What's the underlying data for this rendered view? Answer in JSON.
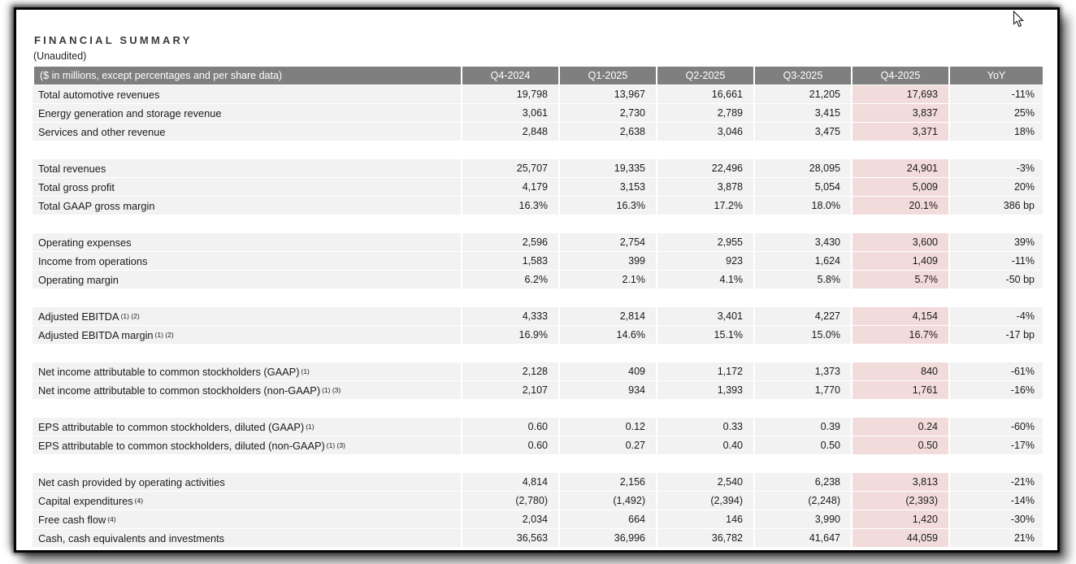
{
  "page": {
    "title": "FINANCIAL SUMMARY",
    "subtitle": "(Unaudited)"
  },
  "colors": {
    "header_bg": "#7f7f7f",
    "header_text": "#ffffff",
    "row_bg": "#f2f2f2",
    "highlight_bg": "#f2dcdb",
    "text": "#1a1a1a",
    "frame": "#050505"
  },
  "table": {
    "columns": [
      "($ in millions, except percentages and per share data)",
      "Q4-2024",
      "Q1-2025",
      "Q2-2025",
      "Q3-2025",
      "Q4-2025",
      "YoY"
    ],
    "highlight_column": "Q4-2025",
    "highlight_value_index": 4,
    "groups": [
      {
        "rows": [
          {
            "label": "Total automotive revenues",
            "sup": "",
            "values": [
              "19,798",
              "13,967",
              "16,661",
              "21,205",
              "17,693",
              "-11%"
            ]
          },
          {
            "label": "Energy generation and storage revenue",
            "sup": "",
            "values": [
              "3,061",
              "2,730",
              "2,789",
              "3,415",
              "3,837",
              "25%"
            ]
          },
          {
            "label": "Services and other revenue",
            "sup": "",
            "values": [
              "2,848",
              "2,638",
              "3,046",
              "3,475",
              "3,371",
              "18%"
            ]
          }
        ]
      },
      {
        "rows": [
          {
            "label": "Total revenues",
            "sup": "",
            "values": [
              "25,707",
              "19,335",
              "22,496",
              "28,095",
              "24,901",
              "-3%"
            ]
          },
          {
            "label": "Total gross profit",
            "sup": "",
            "values": [
              "4,179",
              "3,153",
              "3,878",
              "5,054",
              "5,009",
              "20%"
            ]
          },
          {
            "label": "Total GAAP gross margin",
            "sup": "",
            "values": [
              "16.3%",
              "16.3%",
              "17.2%",
              "18.0%",
              "20.1%",
              "386 bp"
            ]
          }
        ]
      },
      {
        "rows": [
          {
            "label": "Operating expenses",
            "sup": "",
            "values": [
              "2,596",
              "2,754",
              "2,955",
              "3,430",
              "3,600",
              "39%"
            ]
          },
          {
            "label": "Income from operations",
            "sup": "",
            "values": [
              "1,583",
              "399",
              "923",
              "1,624",
              "1,409",
              "-11%"
            ]
          },
          {
            "label": "Operating margin",
            "sup": "",
            "values": [
              "6.2%",
              "2.1%",
              "4.1%",
              "5.8%",
              "5.7%",
              "-50 bp"
            ]
          }
        ]
      },
      {
        "rows": [
          {
            "label": "Adjusted EBITDA",
            "sup": "(1) (2)",
            "values": [
              "4,333",
              "2,814",
              "3,401",
              "4,227",
              "4,154",
              "-4%"
            ]
          },
          {
            "label": "Adjusted EBITDA margin",
            "sup": "(1) (2)",
            "values": [
              "16.9%",
              "14.6%",
              "15.1%",
              "15.0%",
              "16.7%",
              "-17 bp"
            ]
          }
        ]
      },
      {
        "rows": [
          {
            "label": "Net income attributable to common stockholders (GAAP)",
            "sup": "(1)",
            "values": [
              "2,128",
              "409",
              "1,172",
              "1,373",
              "840",
              "-61%"
            ]
          },
          {
            "label": "Net income attributable to common stockholders (non-GAAP)",
            "sup": "(1) (3)",
            "values": [
              "2,107",
              "934",
              "1,393",
              "1,770",
              "1,761",
              "-16%"
            ]
          }
        ]
      },
      {
        "rows": [
          {
            "label": "EPS attributable to common stockholders, diluted (GAAP)",
            "sup": "(1)",
            "values": [
              "0.60",
              "0.12",
              "0.33",
              "0.39",
              "0.24",
              "-60%"
            ]
          },
          {
            "label": "EPS attributable to common stockholders, diluted (non-GAAP)",
            "sup": "(1) (3)",
            "values": [
              "0.60",
              "0.27",
              "0.40",
              "0.50",
              "0.50",
              "-17%"
            ]
          }
        ]
      },
      {
        "rows": [
          {
            "label": "Net cash provided by operating activities",
            "sup": "",
            "values": [
              "4,814",
              "2,156",
              "2,540",
              "6,238",
              "3,813",
              "-21%"
            ]
          },
          {
            "label": "Capital expenditures",
            "sup": "(4)",
            "values": [
              "(2,780)",
              "(1,492)",
              "(2,394)",
              "(2,248)",
              "(2,393)",
              "-14%"
            ]
          },
          {
            "label": "Free cash flow",
            "sup": "(4)",
            "values": [
              "2,034",
              "664",
              "146",
              "3,990",
              "1,420",
              "-30%"
            ]
          },
          {
            "label": "Cash, cash equivalents and investments",
            "sup": "",
            "values": [
              "36,563",
              "36,996",
              "36,782",
              "41,647",
              "44,059",
              "21%"
            ]
          }
        ]
      }
    ]
  }
}
